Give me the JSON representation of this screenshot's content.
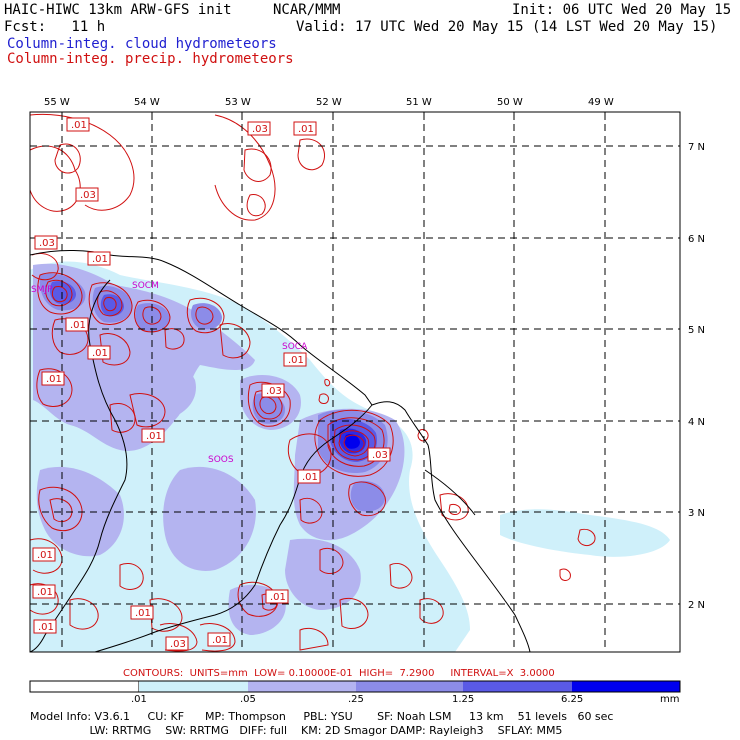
{
  "header": {
    "title": "HAIC-HIWC 13km ARW-GFS init",
    "center": "NCAR/MMM",
    "init": "Init: 06 UTC Wed 20 May 15",
    "fcst": "Fcst:   11 h",
    "valid": "Valid: 17 UTC Wed 20 May 15 (14 LST Wed 20 May 15)",
    "field_blue": "Column-integ. cloud hydrometeors",
    "field_red": "Column-integ. precip. hydrometeors"
  },
  "colors": {
    "blue_text": "#1f1fd0",
    "red_text": "#d01010",
    "station_text": "#cc00cc",
    "shade_1": "#cff0fa",
    "shade_2": "#b4b4f0",
    "shade_3": "#8c8ce8",
    "shade_4": "#5a5ae6",
    "shade_5": "#2a2ae8",
    "shade_6": "#0000ee"
  },
  "map": {
    "lon_labels": [
      "55 W",
      "54 W",
      "53 W",
      "52 W",
      "51 W",
      "50 W",
      "49 W"
    ],
    "lat_labels": [
      "7 N",
      "6 N",
      "5 N",
      "4 N",
      "3 N",
      "2 N"
    ],
    "stations": [
      "SMJP",
      "SOCM",
      "SOCA",
      "SOOS"
    ],
    "contour_labels": [
      ".01",
      ".03",
      ".01",
      ".03",
      ".03",
      ".01",
      ".01",
      ".01",
      ".01",
      ".01",
      ".03",
      ".01",
      ".01",
      ".01",
      ".03",
      ".01",
      ".01",
      ".01",
      ".01",
      ".03",
      ".01"
    ]
  },
  "contours_info": "CONTOURS:  UNITS=mm  LOW= 0.10000E-01  HIGH=  7.2900     INTERVAL=X  3.0000",
  "legend": {
    "labels": [
      ".01",
      ".05",
      ".25",
      "1.25",
      "6.25"
    ],
    "unit": "mm"
  },
  "footer": {
    "line1": "Model Info: V3.6.1     CU: KF      MP: Thompson     PBL: YSU       SF: Noah LSM     13 km    51 levels   60 sec",
    "line2": "                 LW: RRTMG    SW: RRTMG   DIFF: full    KM: 2D Smagor DAMP: Rayleigh3    SFLAY: MM5"
  }
}
